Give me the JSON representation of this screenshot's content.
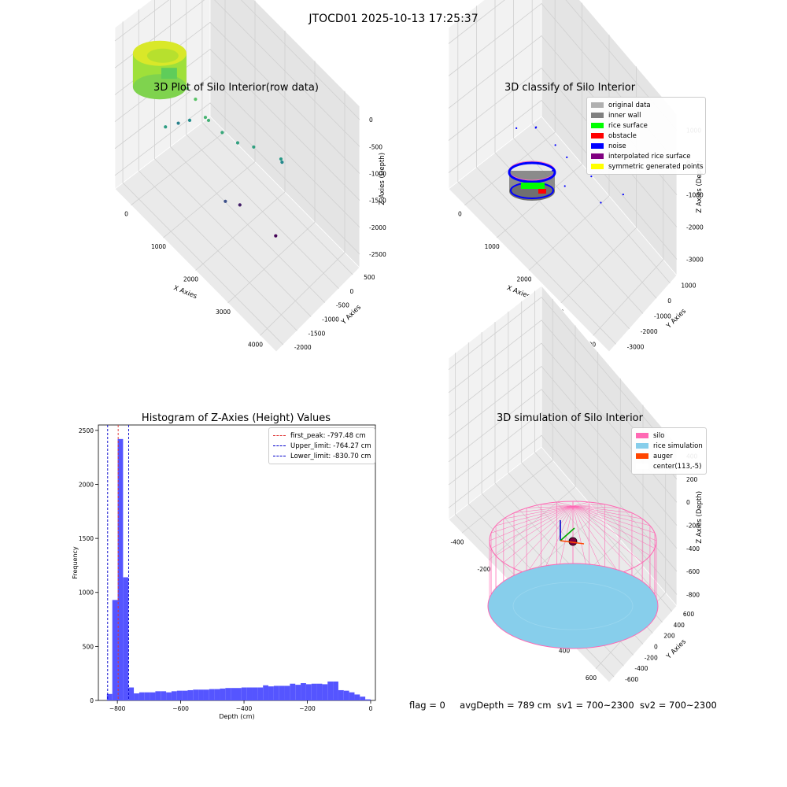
{
  "suptitle": "JTOCD01 2025-10-13 17:25:37",
  "footer": {
    "flag": "flag = 0",
    "avg": "avgDepth = 789 cm",
    "sv1": "sv1 = 700~2300",
    "sv2": "sv2 = 700~2300"
  },
  "colors": {
    "hist_bar": "#5555ff",
    "peak_line": "#dd3333",
    "limit_line": "#0000cc",
    "silo": "#ff69b4",
    "rice": "#87ceeb",
    "auger": "#ff4500",
    "noise": "#0000ff",
    "rice_surface": "#00ff00",
    "inner_wall": "#808080"
  },
  "chart_data": [
    {
      "type": "scatter",
      "title": "3D Plot of Silo Interior(row data)",
      "xlabel": "X Axies",
      "ylabel": "Y Axies",
      "zlabel": "Z Axies (Depth)",
      "x_ticks": [
        "0",
        "1000",
        "2000",
        "3000",
        "4000"
      ],
      "y_ticks": [
        "-2000",
        "-1500",
        "-1000",
        "-500",
        "0",
        "500"
      ],
      "z_ticks": [
        "-2500",
        "-2000",
        "-1500",
        "-1000",
        "-500",
        "0"
      ],
      "xlim": [
        -500,
        4300
      ],
      "ylim": [
        -2100,
        700
      ],
      "zlim": [
        -2900,
        0
      ],
      "colormap": "viridis",
      "cluster": {
        "label": "silo interior point cloud",
        "center": [
          300,
          100
        ],
        "radius": 700,
        "z_range": [
          -900,
          -300
        ]
      },
      "points": [
        {
          "x": 900,
          "y": -150,
          "z": -700
        },
        {
          "x": 1100,
          "y": -200,
          "z": -800
        },
        {
          "x": 1350,
          "y": -250,
          "z": -1000
        },
        {
          "x": 1400,
          "y": -300,
          "z": -1050
        },
        {
          "x": 1700,
          "y": -420,
          "z": -1150
        },
        {
          "x": 2000,
          "y": -600,
          "z": -1250
        },
        {
          "x": 2300,
          "y": -800,
          "z": -1250
        },
        {
          "x": 2800,
          "y": -1150,
          "z": -1350
        },
        {
          "x": 2700,
          "y": -1300,
          "z": -1550
        },
        {
          "x": 650,
          "y": 300,
          "z": -1300
        },
        {
          "x": 750,
          "y": -400,
          "z": -1500
        },
        {
          "x": 500,
          "y": -300,
          "z": -1650
        },
        {
          "x": 1900,
          "y": -300,
          "z": -2200
        },
        {
          "x": 1800,
          "y": -900,
          "z": -2650
        },
        {
          "x": 2600,
          "y": -1200,
          "z": -2880
        }
      ]
    },
    {
      "type": "scatter",
      "title": "3D classify of Silo Interior",
      "xlabel": "X Axies",
      "ylabel": "Y Axies",
      "zlabel": "Z Axies (Depth)",
      "x_ticks": [
        "0",
        "1000",
        "2000",
        "3000",
        "4000"
      ],
      "y_ticks": [
        "-3000",
        "-2000",
        "-1000",
        "0",
        "1000"
      ],
      "z_ticks": [
        "-3000",
        "-2000",
        "-1000",
        "0",
        "1000"
      ],
      "xlim": [
        -500,
        4300
      ],
      "ylim": [
        -3200,
        1400
      ],
      "zlim": [
        -3400,
        1000
      ],
      "legend": [
        "original data",
        "inner wall",
        "rice surface",
        "obstacle",
        "noise",
        "interpolated rice surface",
        "symmetric generated points"
      ],
      "legend_colors": [
        "#b0b0b0",
        "#808080",
        "#00ff00",
        "#ff0000",
        "#0000ff",
        "#800080",
        "#ffff00"
      ],
      "legend_loc": "upper right",
      "noise_points": [
        {
          "x": 1500,
          "y": 0,
          "z": -500
        },
        {
          "x": 1400,
          "y": -200,
          "z": -700
        },
        {
          "x": 1900,
          "y": -400,
          "z": -800
        },
        {
          "x": 2200,
          "y": -500,
          "z": -900
        },
        {
          "x": 2800,
          "y": -800,
          "z": -1000
        },
        {
          "x": 3400,
          "y": -1600,
          "z": -1300
        },
        {
          "x": 1000,
          "y": 200,
          "z": -900
        },
        {
          "x": 1600,
          "y": -900,
          "z": -2000
        },
        {
          "x": 2600,
          "y": -1900,
          "z": -2400
        },
        {
          "x": 1700,
          "y": -1500,
          "z": -2600
        }
      ]
    },
    {
      "type": "bar",
      "title": "Histogram of Z-Axies (Height) Values",
      "xlabel": "Depth (cm)",
      "ylabel": "Frequency",
      "xlim": [
        -860,
        15
      ],
      "ylim": [
        0,
        2550
      ],
      "x_ticks": [
        -800,
        -600,
        -400,
        -200,
        0
      ],
      "y_ticks": [
        0,
        500,
        1000,
        1500,
        2000,
        2500
      ],
      "bin_width": 17,
      "bins": [
        -850,
        -833,
        -816,
        -799,
        -782,
        -765,
        -748,
        -731,
        -714,
        -697,
        -680,
        -663,
        -646,
        -629,
        -612,
        -595,
        -578,
        -561,
        -544,
        -527,
        -510,
        -493,
        -476,
        -459,
        -442,
        -425,
        -408,
        -391,
        -374,
        -357,
        -340,
        -323,
        -306,
        -289,
        -272,
        -255,
        -238,
        -221,
        -204,
        -187,
        -170,
        -153,
        -136,
        -119,
        -102,
        -85,
        -68,
        -51,
        -34,
        -17
      ],
      "values": [
        0,
        60,
        930,
        2420,
        1140,
        120,
        65,
        75,
        75,
        75,
        85,
        85,
        75,
        85,
        90,
        90,
        95,
        100,
        100,
        100,
        105,
        105,
        110,
        115,
        115,
        115,
        120,
        120,
        120,
        120,
        140,
        130,
        135,
        135,
        135,
        155,
        145,
        160,
        150,
        155,
        155,
        150,
        175,
        175,
        95,
        90,
        75,
        55,
        35,
        10
      ],
      "vlines": [
        {
          "label": "first_peak: -797.48 cm",
          "x": -797.48,
          "kind": "peak"
        },
        {
          "label": "Upper_limit: -764.27 cm",
          "x": -764.27,
          "kind": "limit"
        },
        {
          "label": "Lower_limit: -830.70 cm",
          "x": -830.7,
          "kind": "limit"
        }
      ],
      "legend_loc": "upper right"
    },
    {
      "type": "scatter",
      "title": "3D simulation of Silo Interior",
      "xlabel": "X Axies",
      "ylabel": "Y Axies",
      "zlabel": "Z Axies (Depth)",
      "x_ticks": [
        "-400",
        "-200",
        "0",
        "200",
        "400",
        "600"
      ],
      "y_ticks": [
        "-600",
        "-400",
        "-200",
        "0",
        "200",
        "400",
        "600"
      ],
      "z_ticks": [
        "-800",
        "-600",
        "-400",
        "-200",
        "0",
        "200",
        "400"
      ],
      "xlim": [
        -500,
        700
      ],
      "ylim": [
        -700,
        700
      ],
      "zlim": [
        -900,
        450
      ],
      "legend": [
        "silo",
        "rice simulation",
        "auger",
        "center(113,-5)"
      ],
      "legend_colors": [
        "#ff69b4",
        "#87ceeb",
        "#ff4500",
        "#ffffff"
      ],
      "legend_loc": "upper right"
    }
  ]
}
